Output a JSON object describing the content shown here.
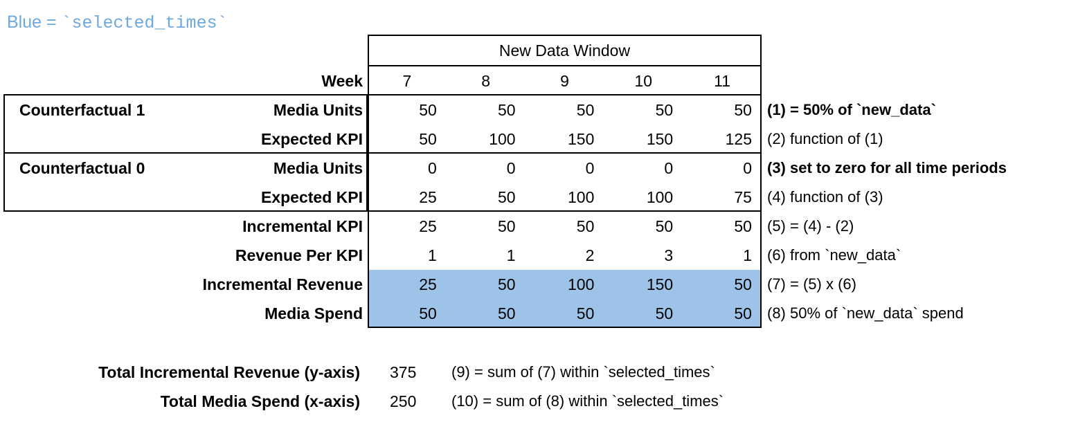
{
  "page": {
    "legend": {
      "prefix": "Blue = ",
      "code": "`selected_times`"
    },
    "colors": {
      "highlight_blue": "#9EC3E8",
      "legend_blue": "#6FA8DC",
      "border": "#000000",
      "text": "#000000"
    }
  },
  "table": {
    "window_header": "New Data Window",
    "week_label": "Week",
    "weeks": [
      "7",
      "8",
      "9",
      "10",
      "11"
    ],
    "groups": [
      {
        "name": "Counterfactual 1",
        "first_row": 0,
        "last_row": 1
      },
      {
        "name": "Counterfactual 0",
        "first_row": 2,
        "last_row": 3
      }
    ],
    "rows": [
      {
        "label": "Media Units",
        "values": [
          "50",
          "50",
          "50",
          "50",
          "50"
        ],
        "annotation": "(1) = 50% of `new_data`",
        "annotation_bold": true,
        "highlight": false
      },
      {
        "label": "Expected KPI",
        "values": [
          "50",
          "100",
          "150",
          "150",
          "125"
        ],
        "annotation": "(2) function of (1)",
        "annotation_bold": false,
        "highlight": false
      },
      {
        "label": "Media Units",
        "values": [
          "0",
          "0",
          "0",
          "0",
          "0"
        ],
        "annotation": "(3) set to zero for all time periods",
        "annotation_bold": true,
        "highlight": false
      },
      {
        "label": "Expected KPI",
        "values": [
          "25",
          "50",
          "100",
          "100",
          "75"
        ],
        "annotation": "(4) function of (3)",
        "annotation_bold": false,
        "highlight": false
      },
      {
        "label": "Incremental KPI",
        "values": [
          "25",
          "50",
          "50",
          "50",
          "50"
        ],
        "annotation": "(5) = (4) - (2)",
        "annotation_bold": false,
        "highlight": false
      },
      {
        "label": "Revenue Per KPI",
        "values": [
          "1",
          "1",
          "2",
          "3",
          "1"
        ],
        "annotation": "(6) from `new_data`",
        "annotation_bold": false,
        "highlight": false
      },
      {
        "label": "Incremental Revenue",
        "values": [
          "25",
          "50",
          "100",
          "150",
          "50"
        ],
        "annotation": "(7) = (5) x (6)",
        "annotation_bold": false,
        "highlight": true
      },
      {
        "label": "Media Spend",
        "values": [
          "50",
          "50",
          "50",
          "50",
          "50"
        ],
        "annotation": "(8) 50% of `new_data` spend",
        "annotation_bold": false,
        "highlight": true
      }
    ]
  },
  "totals": [
    {
      "label": "Total Incremental Revenue (y-axis)",
      "value": "375",
      "annotation": "(9) = sum of (7) within `selected_times`"
    },
    {
      "label": "Total Media Spend (x-axis)",
      "value": "250",
      "annotation": "(10) = sum of (8) within `selected_times`"
    }
  ],
  "chart_data": {
    "type": "table",
    "title": "New Data Window",
    "legend_note": "Blue = `selected_times`",
    "columns": [
      "Week",
      7,
      8,
      9,
      10,
      11
    ],
    "rows": [
      {
        "group": "Counterfactual 1",
        "label": "Media Units",
        "values": [
          50,
          50,
          50,
          50,
          50
        ],
        "note": "(1) = 50% of `new_data`"
      },
      {
        "group": "Counterfactual 1",
        "label": "Expected KPI",
        "values": [
          50,
          100,
          150,
          150,
          125
        ],
        "note": "(2) function of (1)"
      },
      {
        "group": "Counterfactual 0",
        "label": "Media Units",
        "values": [
          0,
          0,
          0,
          0,
          0
        ],
        "note": "(3) set to zero for all time periods"
      },
      {
        "group": "Counterfactual 0",
        "label": "Expected KPI",
        "values": [
          25,
          50,
          100,
          100,
          75
        ],
        "note": "(4) function of (3)"
      },
      {
        "group": null,
        "label": "Incremental KPI",
        "values": [
          25,
          50,
          50,
          50,
          50
        ],
        "note": "(5) = (4) - (2)"
      },
      {
        "group": null,
        "label": "Revenue Per KPI",
        "values": [
          1,
          1,
          2,
          3,
          1
        ],
        "note": "(6) from `new_data`"
      },
      {
        "group": null,
        "label": "Incremental Revenue",
        "values": [
          25,
          50,
          100,
          150,
          50
        ],
        "note": "(7) = (5) x (6)",
        "highlighted": true
      },
      {
        "group": null,
        "label": "Media Spend",
        "values": [
          50,
          50,
          50,
          50,
          50
        ],
        "note": "(8) 50% of `new_data` spend",
        "highlighted": true
      }
    ],
    "totals": [
      {
        "label": "Total Incremental Revenue (y-axis)",
        "value": 375,
        "note": "(9) = sum of (7) within `selected_times`"
      },
      {
        "label": "Total Media Spend (x-axis)",
        "value": 250,
        "note": "(10) = sum of (8) within `selected_times`"
      }
    ]
  }
}
